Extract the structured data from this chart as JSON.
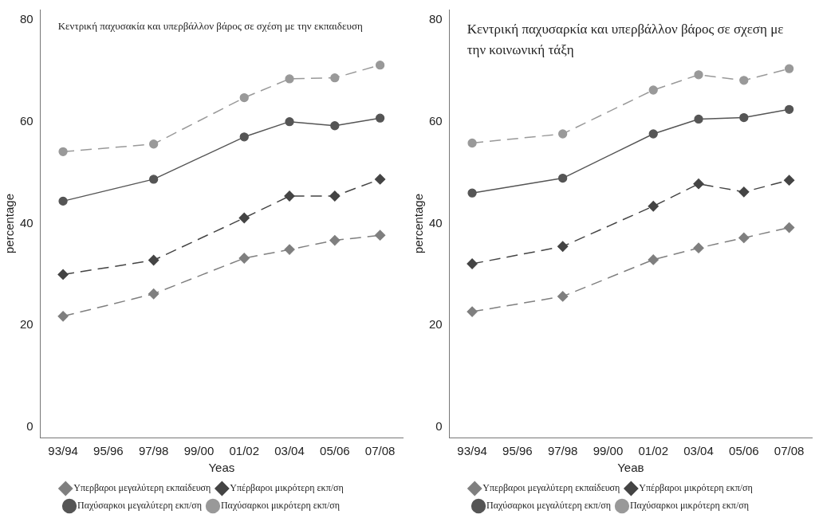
{
  "chart_data": [
    {
      "type": "line",
      "annotations": [
        "Κεντρική παχυσακία και υπερβάλλον βάρος σε σχέση με την εκπαιδευση"
      ],
      "xlabel": "Yeas",
      "ylabel": "percentage",
      "categories": [
        "93/94",
        "95/96",
        "97/98",
        "99/00",
        "01/02",
        "03/04",
        "05/06",
        "07/08"
      ],
      "ylim": [
        -2,
        82
      ],
      "yticks": [
        0,
        20,
        40,
        60,
        80
      ],
      "grid": false,
      "legend": "bottom",
      "series": [
        {
          "name": "Υπερβαροι μεγαλύτερη εκπαίδευση",
          "color": "#7f7f7f",
          "marker": "diamond",
          "line_style": "dashed",
          "values": [
            21.8,
            null,
            26.2,
            null,
            33.2,
            34.9,
            36.7,
            37.7
          ]
        },
        {
          "name": "Υπέρβαροι μικρότερη εκπ/ση",
          "color": "#444444",
          "marker": "diamond",
          "line_style": "dashed",
          "values": [
            30.0,
            null,
            32.8,
            null,
            41.1,
            45.4,
            45.4,
            48.7
          ]
        },
        {
          "name": "Παχύσαρκοι μεγαλύτερη εκπ/ση",
          "color": "#555555",
          "marker": "circle",
          "line_style": "solid",
          "values": [
            44.4,
            null,
            48.7,
            null,
            57.0,
            60.0,
            59.2,
            60.7
          ]
        },
        {
          "name": "Παχύσαρκοι μικρότερη εκπ/ση",
          "color": "#999999",
          "marker": "circle",
          "line_style": "dashed",
          "values": [
            54.1,
            null,
            55.6,
            null,
            64.7,
            68.4,
            68.6,
            71.1
          ]
        }
      ]
    },
    {
      "type": "line",
      "annotations": [
        "Κεντρική παχυσαρκία και υπερβάλλον βάρος σε σχεση με την κοινωνική τάξη"
      ],
      "xlabel": "Yeaв",
      "ylabel": "percentage",
      "categories": [
        "93/94",
        "95/96",
        "97/98",
        "99/00",
        "01/02",
        "03/04",
        "05/06",
        "07/08"
      ],
      "ylim": [
        -2,
        82
      ],
      "yticks": [
        0,
        20,
        40,
        60,
        80
      ],
      "grid": false,
      "legend": "bottom",
      "series": [
        {
          "name": "Υπερβαροι μεγαλύτερη εκπαίδευση",
          "color": "#7f7f7f",
          "marker": "diamond",
          "line_style": "dashed",
          "values": [
            22.7,
            null,
            25.7,
            null,
            32.9,
            35.2,
            37.2,
            39.2
          ]
        },
        {
          "name": "Υπέρβαροι μικρότερη εκπ/ση",
          "color": "#444444",
          "marker": "diamond",
          "line_style": "dashed",
          "values": [
            32.1,
            null,
            35.5,
            null,
            43.4,
            47.8,
            46.2,
            48.5
          ]
        },
        {
          "name": "Παχύσαρκοι μεγαλύτερη εκπ/ση",
          "color": "#555555",
          "marker": "circle",
          "line_style": "solid",
          "values": [
            46.0,
            null,
            48.9,
            null,
            57.6,
            60.5,
            60.8,
            62.4
          ]
        },
        {
          "name": "Παχύσαρκοι μικρότερη εκπ/ση",
          "color": "#999999",
          "marker": "circle",
          "line_style": "dashed",
          "values": [
            55.8,
            null,
            57.6,
            null,
            66.2,
            69.2,
            68.1,
            70.4
          ]
        }
      ]
    }
  ]
}
